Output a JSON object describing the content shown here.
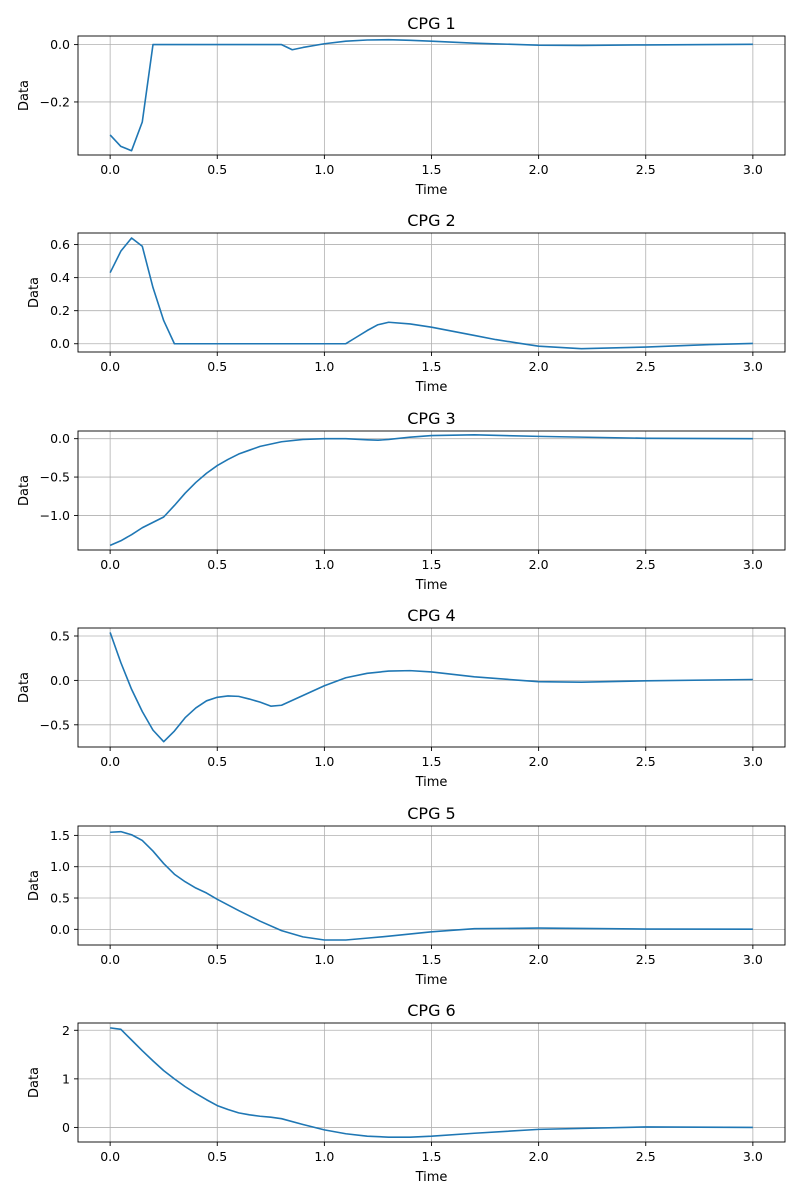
{
  "style": {
    "line_color": "#1f77b4",
    "grid_color": "#b0b0b0",
    "axes_color": "#000000"
  },
  "chart_data": [
    {
      "type": "line",
      "title": "CPG 1",
      "xlabel": "Time",
      "ylabel": "Data",
      "xlim": [
        -0.15,
        3.15
      ],
      "ylim": [
        -0.385,
        0.03
      ],
      "xticks": [
        0,
        0.5,
        1,
        1.5,
        2,
        2.5,
        3
      ],
      "xtick_labels": [
        "0.0",
        "0.5",
        "1.0",
        "1.5",
        "2.0",
        "2.5",
        "3.0"
      ],
      "yticks": [
        0,
        -0.2
      ],
      "ytick_labels": [
        "0.0",
        "−0.2"
      ],
      "grid": true,
      "series": [
        {
          "x": [
            0,
            0.05,
            0.1,
            0.15,
            0.2,
            0.3,
            0.5,
            0.8,
            0.85,
            0.9,
            1.0,
            1.1,
            1.2,
            1.3,
            1.4,
            1.5,
            1.7,
            2.0,
            2.2,
            2.5,
            3.0
          ],
          "y": [
            -0.315,
            -0.355,
            -0.37,
            -0.27,
            0,
            0,
            0,
            0,
            -0.018,
            -0.01,
            0.003,
            0.012,
            0.016,
            0.017,
            0.015,
            0.012,
            0.005,
            -0.002,
            -0.003,
            -0.001,
            0.001
          ]
        }
      ]
    },
    {
      "type": "line",
      "title": "CPG 2",
      "xlabel": "Time",
      "ylabel": "Data",
      "xlim": [
        -0.15,
        3.15
      ],
      "ylim": [
        -0.05,
        0.67
      ],
      "xticks": [
        0,
        0.5,
        1,
        1.5,
        2,
        2.5,
        3
      ],
      "xtick_labels": [
        "0.0",
        "0.5",
        "1.0",
        "1.5",
        "2.0",
        "2.5",
        "3.0"
      ],
      "yticks": [
        0,
        0.2,
        0.4,
        0.6
      ],
      "ytick_labels": [
        "0.0",
        "0.2",
        "0.4",
        "0.6"
      ],
      "grid": true,
      "series": [
        {
          "x": [
            0,
            0.05,
            0.1,
            0.15,
            0.2,
            0.25,
            0.3,
            0.5,
            1.0,
            1.1,
            1.15,
            1.2,
            1.25,
            1.3,
            1.4,
            1.5,
            1.6,
            1.7,
            1.8,
            1.9,
            2.0,
            2.2,
            2.5,
            2.8,
            3.0
          ],
          "y": [
            0.43,
            0.56,
            0.64,
            0.59,
            0.34,
            0.14,
            0,
            0,
            0,
            0,
            0.04,
            0.08,
            0.115,
            0.13,
            0.12,
            0.1,
            0.075,
            0.05,
            0.025,
            0.005,
            -0.015,
            -0.03,
            -0.02,
            -0.005,
            0.002
          ]
        }
      ]
    },
    {
      "type": "line",
      "title": "CPG 3",
      "xlabel": "Time",
      "ylabel": "Data",
      "xlim": [
        -0.15,
        3.15
      ],
      "ylim": [
        -1.45,
        0.1
      ],
      "xticks": [
        0,
        0.5,
        1,
        1.5,
        2,
        2.5,
        3
      ],
      "xtick_labels": [
        "0.0",
        "0.5",
        "1.0",
        "1.5",
        "2.0",
        "2.5",
        "3.0"
      ],
      "yticks": [
        0,
        -0.5,
        -1.0
      ],
      "ytick_labels": [
        "0.0",
        "−0.5",
        "−1.0"
      ],
      "grid": true,
      "series": [
        {
          "x": [
            0,
            0.05,
            0.1,
            0.15,
            0.2,
            0.25,
            0.3,
            0.35,
            0.4,
            0.45,
            0.5,
            0.55,
            0.6,
            0.65,
            0.7,
            0.8,
            0.9,
            1.0,
            1.1,
            1.2,
            1.25,
            1.3,
            1.4,
            1.5,
            1.7,
            2.0,
            2.5,
            3.0
          ],
          "y": [
            -1.39,
            -1.33,
            -1.25,
            -1.16,
            -1.09,
            -1.02,
            -0.87,
            -0.71,
            -0.57,
            -0.45,
            -0.35,
            -0.27,
            -0.2,
            -0.15,
            -0.1,
            -0.04,
            -0.01,
            0,
            0,
            -0.015,
            -0.02,
            -0.01,
            0.02,
            0.04,
            0.05,
            0.03,
            0.005,
            0
          ]
        }
      ]
    },
    {
      "type": "line",
      "title": "CPG 4",
      "xlabel": "Time",
      "ylabel": "Data",
      "xlim": [
        -0.15,
        3.15
      ],
      "ylim": [
        -0.75,
        0.59
      ],
      "xticks": [
        0,
        0.5,
        1,
        1.5,
        2,
        2.5,
        3
      ],
      "xtick_labels": [
        "0.0",
        "0.5",
        "1.0",
        "1.5",
        "2.0",
        "2.5",
        "3.0"
      ],
      "yticks": [
        0.5,
        0,
        -0.5
      ],
      "ytick_labels": [
        "0.5",
        "0.0",
        "−0.5"
      ],
      "grid": true,
      "series": [
        {
          "x": [
            0,
            0.05,
            0.1,
            0.15,
            0.2,
            0.25,
            0.3,
            0.35,
            0.4,
            0.45,
            0.5,
            0.55,
            0.6,
            0.65,
            0.7,
            0.75,
            0.8,
            0.9,
            1.0,
            1.1,
            1.2,
            1.3,
            1.4,
            1.5,
            1.7,
            2.0,
            2.2,
            2.5,
            3.0
          ],
          "y": [
            0.54,
            0.2,
            -0.1,
            -0.35,
            -0.56,
            -0.69,
            -0.57,
            -0.42,
            -0.31,
            -0.23,
            -0.19,
            -0.175,
            -0.18,
            -0.21,
            -0.245,
            -0.29,
            -0.28,
            -0.17,
            -0.06,
            0.03,
            0.08,
            0.105,
            0.11,
            0.095,
            0.04,
            -0.015,
            -0.02,
            -0.005,
            0.01
          ]
        }
      ]
    },
    {
      "type": "line",
      "title": "CPG 5",
      "xlabel": "Time",
      "ylabel": "Data",
      "xlim": [
        -0.15,
        3.15
      ],
      "ylim": [
        -0.25,
        1.65
      ],
      "xticks": [
        0,
        0.5,
        1,
        1.5,
        2,
        2.5,
        3
      ],
      "xtick_labels": [
        "0.0",
        "0.5",
        "1.0",
        "1.5",
        "2.0",
        "2.5",
        "3.0"
      ],
      "yticks": [
        1.5,
        1.0,
        0.5,
        0
      ],
      "ytick_labels": [
        "1.5",
        "1.0",
        "0.5",
        "0.0"
      ],
      "grid": true,
      "series": [
        {
          "x": [
            0,
            0.05,
            0.1,
            0.15,
            0.2,
            0.25,
            0.3,
            0.35,
            0.4,
            0.45,
            0.5,
            0.6,
            0.7,
            0.8,
            0.9,
            1.0,
            1.1,
            1.2,
            1.3,
            1.5,
            1.7,
            2.0,
            2.5,
            3.0
          ],
          "y": [
            1.55,
            1.56,
            1.51,
            1.42,
            1.25,
            1.05,
            0.88,
            0.76,
            0.66,
            0.58,
            0.48,
            0.3,
            0.13,
            -0.02,
            -0.12,
            -0.17,
            -0.17,
            -0.14,
            -0.11,
            -0.04,
            0.01,
            0.02,
            0.005,
            0.002
          ]
        }
      ]
    },
    {
      "type": "line",
      "title": "CPG 6",
      "xlabel": "Time",
      "ylabel": "Data",
      "xlim": [
        -0.15,
        3.15
      ],
      "ylim": [
        -0.3,
        2.15
      ],
      "xticks": [
        0,
        0.5,
        1,
        1.5,
        2,
        2.5,
        3
      ],
      "xtick_labels": [
        "0.0",
        "0.5",
        "1.0",
        "1.5",
        "2.0",
        "2.5",
        "3.0"
      ],
      "yticks": [
        2,
        1,
        0
      ],
      "ytick_labels": [
        "2",
        "1",
        "0"
      ],
      "grid": true,
      "series": [
        {
          "x": [
            0,
            0.05,
            0.1,
            0.15,
            0.2,
            0.25,
            0.3,
            0.35,
            0.4,
            0.45,
            0.5,
            0.55,
            0.6,
            0.65,
            0.7,
            0.75,
            0.8,
            0.9,
            1.0,
            1.1,
            1.2,
            1.3,
            1.4,
            1.5,
            1.7,
            2.0,
            2.5,
            3.0
          ],
          "y": [
            2.05,
            2.02,
            1.8,
            1.58,
            1.37,
            1.17,
            1.0,
            0.84,
            0.7,
            0.57,
            0.45,
            0.37,
            0.3,
            0.26,
            0.23,
            0.21,
            0.18,
            0.06,
            -0.05,
            -0.13,
            -0.18,
            -0.2,
            -0.2,
            -0.18,
            -0.12,
            -0.04,
            0.01,
            0
          ]
        }
      ]
    }
  ]
}
